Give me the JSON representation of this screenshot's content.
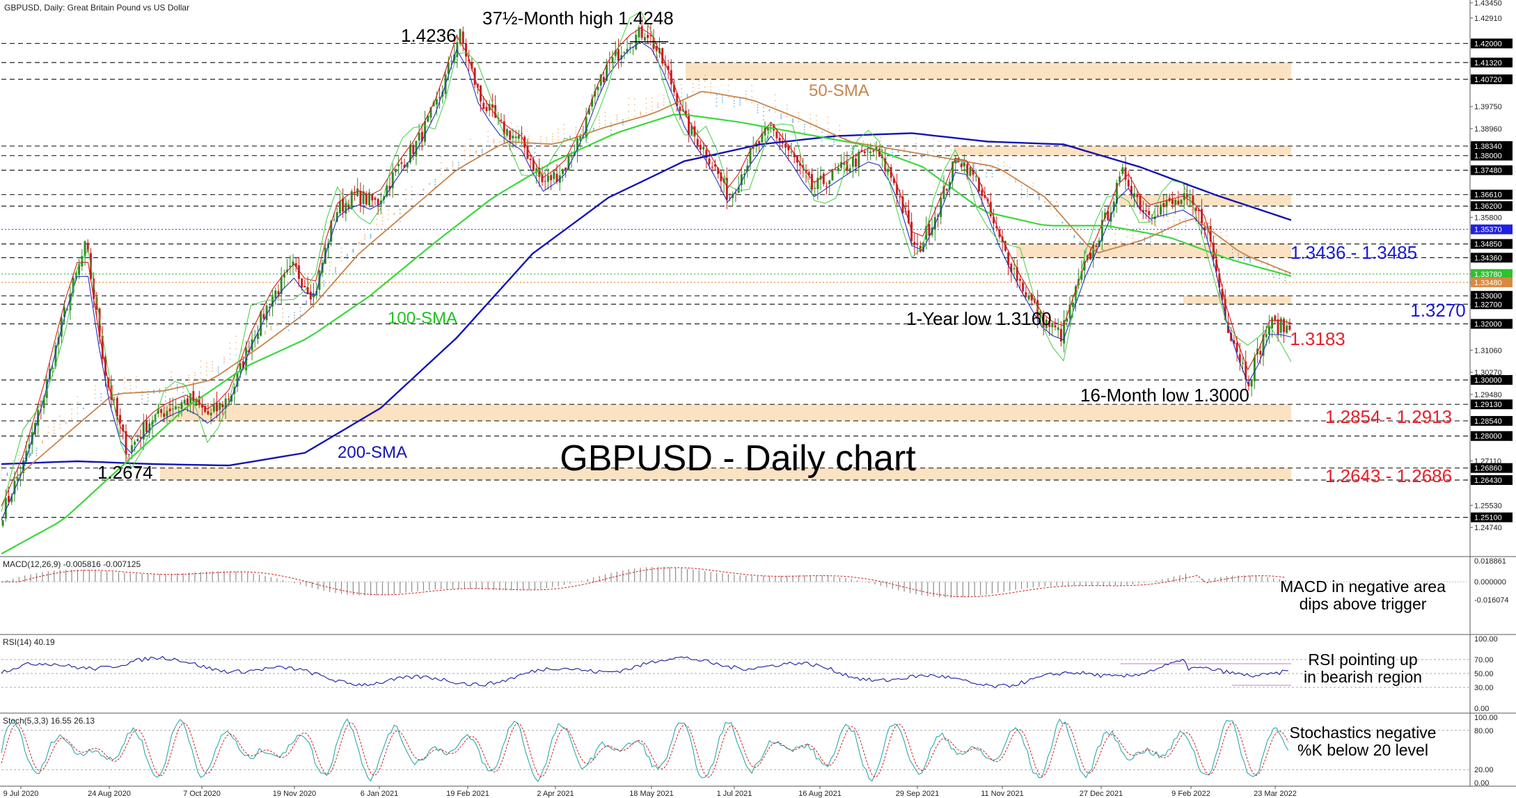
{
  "chart_data": {
    "type": "candlestick",
    "symbol_header": "GBPUSD, Daily:  Great Britain Pound vs US Dollar",
    "title": "GBPUSD - Daily chart",
    "ylim": [
      1.238,
      1.4345
    ],
    "x_tick_labels": [
      "9 Jul 2020",
      "24 Aug 2020",
      "7 Oct 2020",
      "19 Nov 2020",
      "6 Jan 2021",
      "19 Feb 2021",
      "2 Apr 2021",
      "18 May 2021",
      "1 Jul 2021",
      "16 Aug 2021",
      "29 Sep 2021",
      "11 Nov 2021",
      "27 Dec 2021",
      "9 Feb 2022",
      "23 Mar 2022"
    ],
    "y_tick_labels": [
      "1.43450",
      "1.42910",
      "1.42000",
      "1.41320",
      "1.40720",
      "1.39750",
      "1.38960",
      "1.38340",
      "1.38000",
      "1.37480",
      "1.36610",
      "1.36200",
      "1.35800",
      "1.35370",
      "1.34850",
      "1.34360",
      "1.33780",
      "1.33480",
      "1.33000",
      "1.32700",
      "1.32000",
      "1.31060",
      "1.30270",
      "1.30000",
      "1.29480",
      "1.29130",
      "1.28540",
      "1.28000",
      "1.27110",
      "1.26860",
      "1.26430",
      "1.25530",
      "1.25100",
      "1.24740"
    ],
    "highlighted_y_ticks": {
      "1.42000": "black",
      "1.41320": "black",
      "1.40720": "black",
      "1.38340": "black",
      "1.38000": "black",
      "1.37480": "black",
      "1.36610": "black",
      "1.36200": "black",
      "1.35370": "blue",
      "1.34850": "black",
      "1.34360": "black",
      "1.33780": "green",
      "1.33480": "orange",
      "1.33000": "black",
      "1.32700": "black",
      "1.32000": "black",
      "1.30000": "black",
      "1.29130": "black",
      "1.28540": "black",
      "1.28000": "black",
      "1.26860": "black",
      "1.26430": "black",
      "1.25100": "black"
    },
    "horizontal_levels": [
      1.42,
      1.4132,
      1.4072,
      1.3834,
      1.38,
      1.3748,
      1.3661,
      1.362,
      1.3537,
      1.3485,
      1.3436,
      1.3378,
      1.3348,
      1.33,
      1.327,
      1.32,
      1.3,
      1.2913,
      1.2854,
      1.28,
      1.2686,
      1.2643,
      1.251
    ],
    "zones": [
      [
        1.4072,
        1.4132
      ],
      [
        1.38,
        1.3834
      ],
      [
        1.362,
        1.3661
      ],
      [
        1.3436,
        1.3485
      ],
      [
        1.327,
        1.33
      ],
      [
        1.2854,
        1.2913
      ],
      [
        1.2643,
        1.2686
      ]
    ],
    "ohlc_anchor_closes": [
      1.253,
      1.27,
      1.295,
      1.325,
      1.348,
      1.3,
      1.274,
      1.285,
      1.29,
      1.293,
      1.287,
      1.295,
      1.315,
      1.33,
      1.34,
      1.33,
      1.36,
      1.366,
      1.363,
      1.375,
      1.385,
      1.4,
      1.4236,
      1.4,
      1.39,
      1.385,
      1.37,
      1.375,
      1.39,
      1.41,
      1.42,
      1.4248,
      1.41,
      1.39,
      1.38,
      1.365,
      1.38,
      1.39,
      1.38,
      1.368,
      1.373,
      1.378,
      1.382,
      1.37,
      1.345,
      1.36,
      1.38,
      1.37,
      1.35,
      1.335,
      1.322,
      1.316,
      1.338,
      1.355,
      1.374,
      1.36,
      1.362,
      1.364,
      1.355,
      1.32,
      1.3,
      1.32,
      1.3183
    ],
    "sma50": [
      1.265,
      1.28,
      1.295,
      1.296,
      1.3,
      1.312,
      1.325,
      1.345,
      1.36,
      1.375,
      1.385,
      1.384,
      1.39,
      1.395,
      1.403,
      1.4,
      1.393,
      1.385,
      1.382,
      1.379,
      1.376,
      1.365,
      1.345,
      1.35,
      1.358,
      1.345,
      1.338
    ],
    "sma100": [
      1.238,
      1.25,
      1.27,
      1.29,
      1.305,
      1.315,
      1.33,
      1.348,
      1.365,
      1.378,
      1.388,
      1.395,
      1.392,
      1.388,
      1.384,
      1.376,
      1.36,
      1.355,
      1.355,
      1.351,
      1.343,
      1.337
    ],
    "sma200": [
      1.27,
      1.271,
      1.27,
      1.2695,
      1.274,
      1.29,
      1.315,
      1.345,
      1.365,
      1.378,
      1.384,
      1.387,
      1.388,
      1.385,
      1.384,
      1.376,
      1.366,
      1.357
    ],
    "indicators": {
      "macd": {
        "header": "MACD(12,26,9) -0.005816 -0.007125",
        "ticks": [
          "0.018861",
          "0.000000",
          "-0.016074"
        ]
      },
      "rsi": {
        "header": "RSI(14) 40.19",
        "ticks": [
          "100.00",
          "70.00",
          "50.00",
          "30.00",
          "0.00"
        ]
      },
      "stoch": {
        "header": "Stoch(5,3,3) 16.55 26.13",
        "ticks": [
          "100.00",
          "80.00",
          "20.00",
          "0.00"
        ]
      }
    },
    "annotations": {
      "month_high": "37½-Month high 1.4248",
      "high_1": "1.4236",
      "sma50": "50-SMA",
      "sma100": "100-SMA",
      "sma200": "200-SMA",
      "low_2674": "1.2674",
      "year_low": "1-Year low 1.3160",
      "month_low": "16-Month low 1.3000",
      "range_1": "1.3436 - 1.3485",
      "level_1": "1.3270",
      "level_2": "1.3183",
      "range_2": "1.2854 - 1.2913",
      "range_3": "1.2643 - 1.2686",
      "macd_note_1": "MACD in negative area",
      "macd_note_2": "dips above trigger",
      "rsi_note_1": "RSI pointing up",
      "rsi_note_2": "in bearish region",
      "stoch_note_1": "Stochastics negative",
      "stoch_note_2": "%K below 20 level"
    },
    "colors": {
      "bull": "#2e8b22",
      "bear": "#c81e1e",
      "sma50": "#c8844a",
      "sma100": "#3dd63d",
      "sma200": "#1414b4",
      "zone": "#fbe2c2",
      "red_text": "#e8202a",
      "blue_text": "#1a1ad0",
      "signal": "#d02020",
      "macd_hist": "#8c8c8c"
    }
  }
}
